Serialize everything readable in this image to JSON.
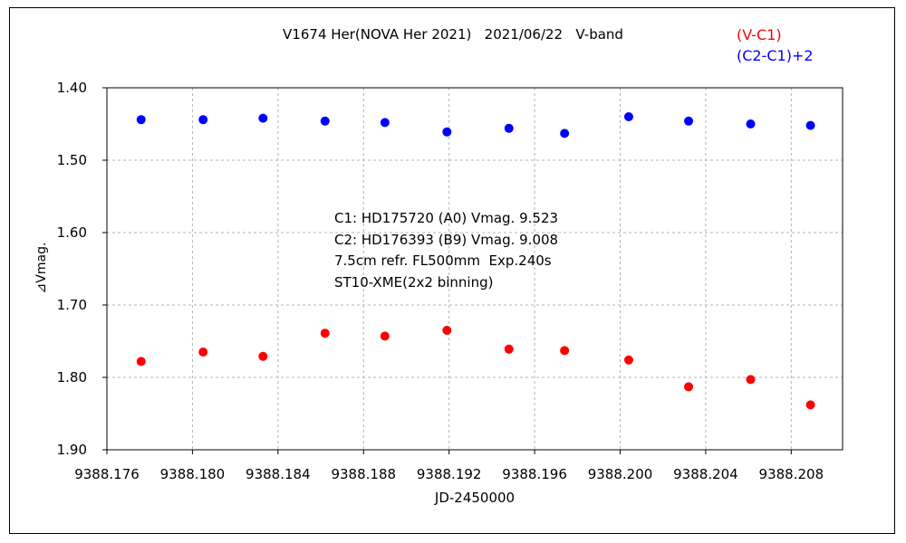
{
  "chart_data": {
    "type": "scatter",
    "title": "V1674 Her(NOVA Her 2021)   2021/06/22   V-band",
    "xlabel": "JD-2450000",
    "ylabel": "⊿Vmag.",
    "xlim": [
      9388.176,
      9388.2104
    ],
    "ylim": [
      1.4,
      1.9
    ],
    "y_inverted": true,
    "grid": true,
    "legend_position": "top-right",
    "x_ticks": [
      "9388.176",
      "9388.180",
      "9388.184",
      "9388.188",
      "9388.192",
      "9388.196",
      "9388.200",
      "9388.204",
      "9388.208"
    ],
    "x_tick_values": [
      9388.176,
      9388.18,
      9388.184,
      9388.188,
      9388.192,
      9388.196,
      9388.2,
      9388.204,
      9388.208
    ],
    "y_ticks": [
      "1.40",
      "1.50",
      "1.60",
      "1.70",
      "1.80",
      "1.90"
    ],
    "y_tick_values": [
      1.4,
      1.5,
      1.6,
      1.7,
      1.8,
      1.9
    ],
    "series": [
      {
        "name": "(V-C1)",
        "color": "#ff0000",
        "x": [
          9388.1776,
          9388.1805,
          9388.1833,
          9388.1862,
          9388.189,
          9388.1919,
          9388.1948,
          9388.1974,
          9388.2004,
          9388.2032,
          9388.2061,
          9388.2089
        ],
        "y": [
          1.778,
          1.765,
          1.771,
          1.739,
          1.743,
          1.735,
          1.761,
          1.763,
          1.776,
          1.813,
          1.803,
          1.838
        ]
      },
      {
        "name": "(C2-C1)+2",
        "color": "#0000ff",
        "x": [
          9388.1776,
          9388.1805,
          9388.1833,
          9388.1862,
          9388.189,
          9388.1919,
          9388.1948,
          9388.1974,
          9388.2004,
          9388.2032,
          9388.2061,
          9388.2089
        ],
        "y": [
          1.444,
          1.444,
          1.442,
          1.446,
          1.448,
          1.461,
          1.456,
          1.463,
          1.44,
          1.446,
          1.45,
          1.452
        ]
      }
    ],
    "annotations": [
      "C1: HD175720 (A0) Vmag. 9.523",
      "C2: HD176393 (B9) Vmag. 9.008",
      "7.5cm refr. FL500mm  Exp.240s",
      "ST10-XME(2x2 binning)"
    ]
  }
}
